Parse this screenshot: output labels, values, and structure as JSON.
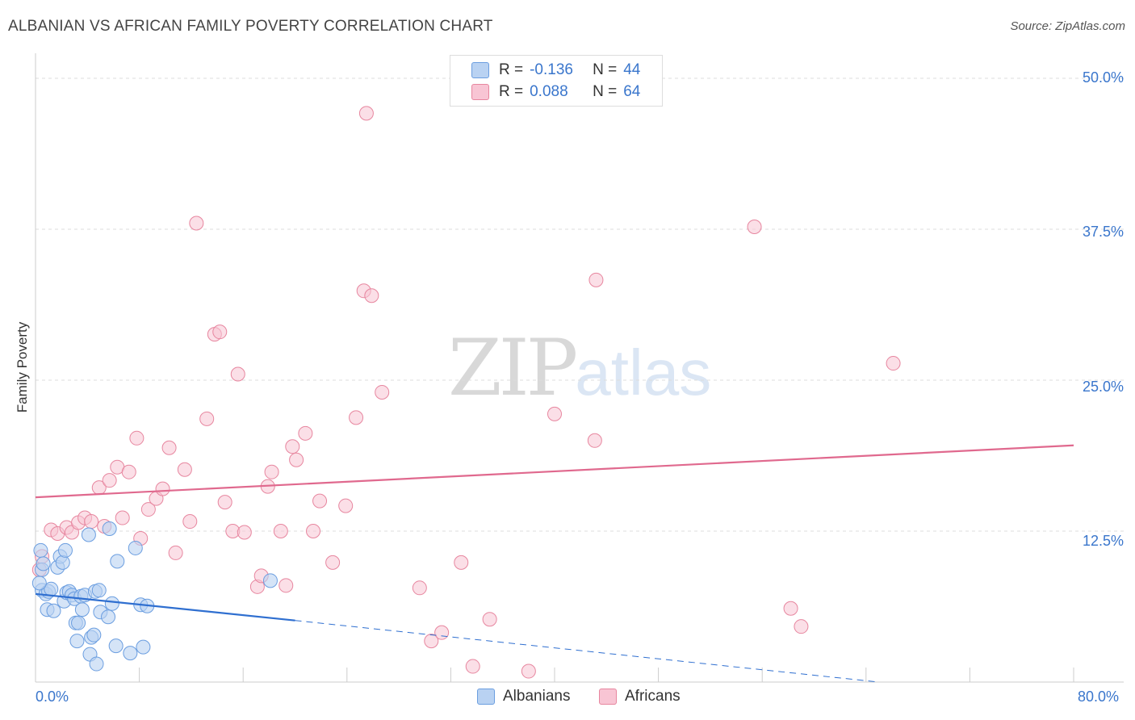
{
  "title": "ALBANIAN VS AFRICAN FAMILY POVERTY CORRELATION CHART",
  "source": "Source: ZipAtlas.com",
  "watermark": {
    "zip": "ZIP",
    "atlas": "atlas"
  },
  "legend": {
    "rows": [
      {
        "r_label": "R =",
        "r_value": "-0.136",
        "n_label": "N =",
        "n_value": "44",
        "color": "#a9c8f0"
      },
      {
        "r_label": "R =",
        "r_value": "0.088",
        "n_label": "N =",
        "n_value": "64",
        "color": "#f7b8cb"
      }
    ]
  },
  "chart_data": {
    "type": "scatter",
    "title": "ALBANIAN VS AFRICAN FAMILY POVERTY CORRELATION CHART",
    "xlabel": "",
    "ylabel": "Family Poverty",
    "xlim": [
      0,
      80
    ],
    "ylim": [
      0,
      50
    ],
    "x_tick_labels": [
      "0.0%",
      "80.0%"
    ],
    "y_tick_labels": [
      "12.5%",
      "25.0%",
      "37.5%",
      "50.0%"
    ],
    "grid": "horizontal dashed",
    "series": [
      {
        "name": "Albanians",
        "color": "#6b9ee0",
        "fill": "#b9d2f2",
        "points": [
          [
            0.4,
            10.9
          ],
          [
            0.5,
            9.3
          ],
          [
            0.5,
            7.6
          ],
          [
            0.8,
            7.3
          ],
          [
            0.9,
            6.0
          ],
          [
            1.0,
            7.5
          ],
          [
            1.2,
            7.7
          ],
          [
            1.4,
            5.9
          ],
          [
            1.7,
            9.5
          ],
          [
            1.9,
            10.4
          ],
          [
            2.1,
            9.9
          ],
          [
            2.2,
            6.7
          ],
          [
            2.3,
            10.9
          ],
          [
            2.4,
            7.4
          ],
          [
            2.6,
            7.5
          ],
          [
            2.8,
            7.2
          ],
          [
            3.0,
            6.9
          ],
          [
            3.1,
            4.9
          ],
          [
            3.2,
            3.4
          ],
          [
            3.3,
            4.9
          ],
          [
            3.5,
            7.1
          ],
          [
            3.6,
            6.0
          ],
          [
            3.8,
            7.2
          ],
          [
            4.1,
            12.2
          ],
          [
            4.2,
            2.3
          ],
          [
            4.3,
            3.7
          ],
          [
            4.5,
            3.9
          ],
          [
            4.6,
            7.5
          ],
          [
            4.7,
            1.5
          ],
          [
            4.9,
            7.6
          ],
          [
            5.0,
            5.8
          ],
          [
            5.6,
            5.4
          ],
          [
            5.7,
            12.7
          ],
          [
            5.9,
            6.5
          ],
          [
            6.2,
            3.0
          ],
          [
            6.3,
            10.0
          ],
          [
            7.3,
            2.4
          ],
          [
            7.7,
            11.1
          ],
          [
            8.1,
            6.4
          ],
          [
            8.3,
            2.9
          ],
          [
            8.6,
            6.3
          ],
          [
            18.1,
            8.4
          ],
          [
            0.3,
            8.2
          ],
          [
            0.6,
            9.8
          ]
        ]
      },
      {
        "name": "Africans",
        "color": "#e7869f",
        "fill": "#f8c5d4",
        "points": [
          [
            0.3,
            9.3
          ],
          [
            0.5,
            10.4
          ],
          [
            1.2,
            12.6
          ],
          [
            1.7,
            12.3
          ],
          [
            2.4,
            12.8
          ],
          [
            2.8,
            12.4
          ],
          [
            3.3,
            13.2
          ],
          [
            3.8,
            13.6
          ],
          [
            4.3,
            13.3
          ],
          [
            4.9,
            16.1
          ],
          [
            5.3,
            12.9
          ],
          [
            5.7,
            16.7
          ],
          [
            6.3,
            17.8
          ],
          [
            6.7,
            13.6
          ],
          [
            7.2,
            17.4
          ],
          [
            7.8,
            20.2
          ],
          [
            8.1,
            11.9
          ],
          [
            8.7,
            14.3
          ],
          [
            9.3,
            15.2
          ],
          [
            9.8,
            16.0
          ],
          [
            10.3,
            19.4
          ],
          [
            10.8,
            10.7
          ],
          [
            11.5,
            17.6
          ],
          [
            11.9,
            13.3
          ],
          [
            12.4,
            38.0
          ],
          [
            13.2,
            21.8
          ],
          [
            13.8,
            28.8
          ],
          [
            14.2,
            29.0
          ],
          [
            14.6,
            14.9
          ],
          [
            15.2,
            12.5
          ],
          [
            15.6,
            25.5
          ],
          [
            16.1,
            12.4
          ],
          [
            17.1,
            7.9
          ],
          [
            17.4,
            8.8
          ],
          [
            17.9,
            16.2
          ],
          [
            18.2,
            17.4
          ],
          [
            18.9,
            12.5
          ],
          [
            19.3,
            8.0
          ],
          [
            19.8,
            19.5
          ],
          [
            20.1,
            18.4
          ],
          [
            20.8,
            20.6
          ],
          [
            21.4,
            12.5
          ],
          [
            21.9,
            15.0
          ],
          [
            22.9,
            9.9
          ],
          [
            23.9,
            14.6
          ],
          [
            24.7,
            21.9
          ],
          [
            25.3,
            32.4
          ],
          [
            25.5,
            47.1
          ],
          [
            25.9,
            32.0
          ],
          [
            26.7,
            24.0
          ],
          [
            29.6,
            7.8
          ],
          [
            30.5,
            3.4
          ],
          [
            31.3,
            4.1
          ],
          [
            32.8,
            9.9
          ],
          [
            33.7,
            1.3
          ],
          [
            35.0,
            5.2
          ],
          [
            38.0,
            0.9
          ],
          [
            40.0,
            22.2
          ],
          [
            43.1,
            20.0
          ],
          [
            43.2,
            33.3
          ],
          [
            55.4,
            37.7
          ],
          [
            58.2,
            6.1
          ],
          [
            59.0,
            4.6
          ],
          [
            66.1,
            26.4
          ]
        ]
      }
    ],
    "trend_lines": [
      {
        "series": "Albanians",
        "solid_x": [
          0,
          20
        ],
        "dashed_x": [
          20,
          65
        ],
        "y_at_0": 7.3,
        "y_at_20": 5.1,
        "y_at_65": 0.0,
        "color": "#2f6fd0"
      },
      {
        "series": "Africans",
        "x": [
          0,
          80
        ],
        "y_at_0": 15.3,
        "y_at_80": 19.6,
        "color": "#e0698e"
      }
    ]
  },
  "bottom_legend": [
    {
      "label": "Albanians",
      "color": "#a9c8f0"
    },
    {
      "label": "Africans",
      "color": "#f7b8cb"
    }
  ]
}
